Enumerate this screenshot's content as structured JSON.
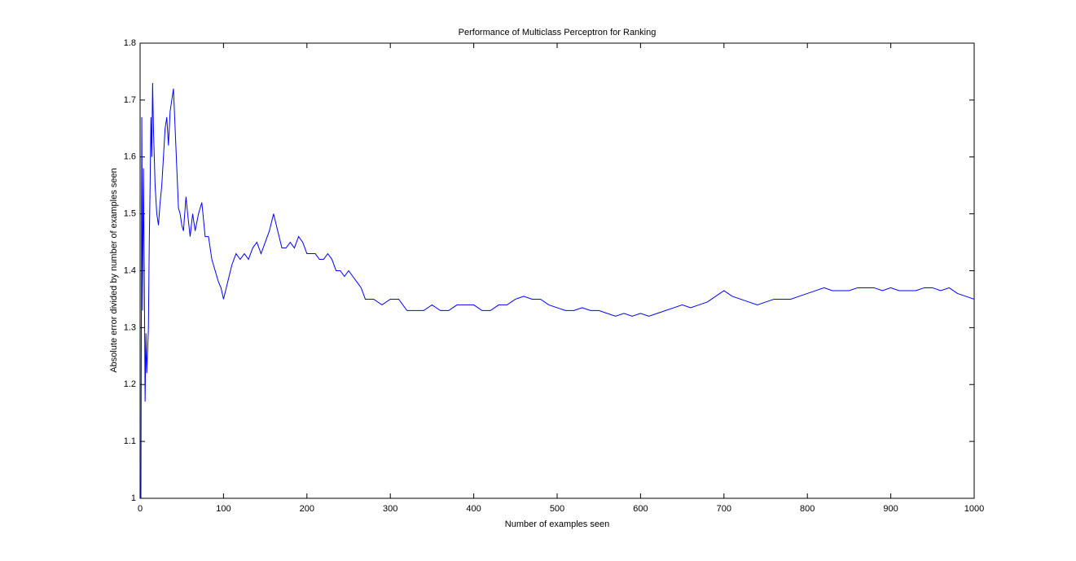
{
  "chart_data": {
    "type": "line",
    "title": "Performance of Multiclass Perceptron for Ranking",
    "x_label": "Number of examples seen",
    "y_label": "Absolute error divided by number of examples seen",
    "color": "#0000ff",
    "xlim": [
      0,
      1000
    ],
    "xticks": [
      0,
      100,
      200,
      300,
      400,
      500,
      600,
      700,
      800,
      900,
      1000
    ],
    "ylim": [
      1,
      1.8
    ],
    "yticks": [
      1,
      1.1,
      1.2,
      1.3,
      1.4,
      1.5,
      1.6,
      1.7,
      1.8
    ],
    "grid": false,
    "x": [
      1,
      2,
      3,
      4,
      5,
      6,
      7,
      8,
      10,
      11,
      12,
      13,
      14,
      15,
      16,
      18,
      20,
      22,
      24,
      26,
      28,
      30,
      32,
      34,
      36,
      38,
      40,
      42,
      44,
      46,
      48,
      50,
      52,
      55,
      57,
      60,
      63,
      66,
      70,
      74,
      78,
      82,
      86,
      90,
      94,
      97,
      100,
      105,
      110,
      115,
      120,
      125,
      130,
      135,
      140,
      145,
      150,
      155,
      160,
      165,
      170,
      175,
      180,
      185,
      190,
      195,
      200,
      210,
      215,
      220,
      225,
      230,
      235,
      240,
      245,
      250,
      255,
      260,
      265,
      270,
      280,
      290,
      300,
      310,
      320,
      330,
      340,
      350,
      360,
      370,
      380,
      390,
      400,
      410,
      420,
      430,
      440,
      450,
      460,
      470,
      480,
      490,
      500,
      510,
      520,
      530,
      540,
      550,
      560,
      570,
      580,
      590,
      600,
      610,
      620,
      630,
      640,
      650,
      660,
      670,
      680,
      690,
      700,
      710,
      720,
      730,
      740,
      750,
      760,
      770,
      780,
      790,
      800,
      810,
      820,
      830,
      840,
      850,
      860,
      870,
      880,
      890,
      900,
      910,
      920,
      930,
      940,
      950,
      960,
      970,
      980,
      990,
      1000
    ],
    "values": [
      1.0,
      1.67,
      1.33,
      1.58,
      1.4,
      1.17,
      1.29,
      1.22,
      1.3,
      1.45,
      1.55,
      1.67,
      1.6,
      1.73,
      1.65,
      1.55,
      1.5,
      1.48,
      1.52,
      1.55,
      1.6,
      1.65,
      1.67,
      1.62,
      1.68,
      1.7,
      1.72,
      1.65,
      1.58,
      1.51,
      1.5,
      1.48,
      1.47,
      1.53,
      1.5,
      1.46,
      1.5,
      1.47,
      1.5,
      1.52,
      1.46,
      1.46,
      1.42,
      1.4,
      1.38,
      1.37,
      1.35,
      1.38,
      1.41,
      1.43,
      1.42,
      1.43,
      1.42,
      1.44,
      1.45,
      1.43,
      1.45,
      1.47,
      1.5,
      1.47,
      1.44,
      1.44,
      1.45,
      1.44,
      1.46,
      1.45,
      1.43,
      1.43,
      1.42,
      1.42,
      1.43,
      1.42,
      1.4,
      1.4,
      1.39,
      1.4,
      1.39,
      1.38,
      1.37,
      1.35,
      1.35,
      1.34,
      1.35,
      1.35,
      1.33,
      1.33,
      1.33,
      1.34,
      1.33,
      1.33,
      1.34,
      1.34,
      1.34,
      1.33,
      1.33,
      1.34,
      1.34,
      1.35,
      1.355,
      1.35,
      1.35,
      1.34,
      1.335,
      1.33,
      1.33,
      1.335,
      1.33,
      1.33,
      1.325,
      1.32,
      1.325,
      1.32,
      1.325,
      1.32,
      1.325,
      1.33,
      1.335,
      1.34,
      1.335,
      1.34,
      1.345,
      1.355,
      1.365,
      1.355,
      1.35,
      1.345,
      1.34,
      1.345,
      1.35,
      1.35,
      1.35,
      1.355,
      1.36,
      1.365,
      1.37,
      1.365,
      1.365,
      1.365,
      1.37,
      1.37,
      1.37,
      1.365,
      1.37,
      1.365,
      1.365,
      1.365,
      1.37,
      1.37,
      1.365,
      1.37,
      1.36,
      1.355,
      1.35
    ]
  }
}
